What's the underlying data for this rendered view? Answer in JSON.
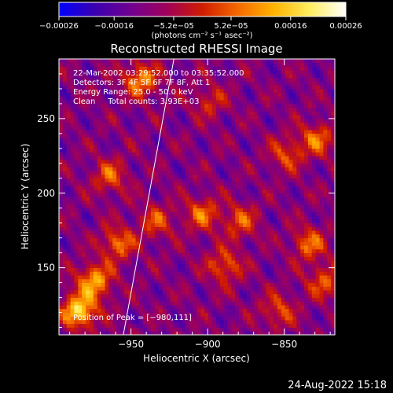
{
  "chart_data": {
    "type": "heatmap",
    "title": "Reconstructed RHESSI Image",
    "xlabel": "Heliocentric X (arcsec)",
    "ylabel": "Heliocentric Y (arcsec)",
    "xlim": [
      -997,
      -817
    ],
    "ylim": [
      105,
      290
    ],
    "x_ticks": [
      -950,
      -900,
      -850
    ],
    "x_tick_labels": [
      "−950",
      "−900",
      "−850"
    ],
    "y_ticks": [
      150,
      200,
      250
    ],
    "y_tick_labels": [
      "150",
      "200",
      "250"
    ],
    "colorbar": {
      "range": [
        -0.00026,
        0.00026
      ],
      "ticks": [
        -0.00026,
        -0.00016,
        -5.2e-05,
        5.2e-05,
        0.00016,
        0.00026
      ],
      "tick_labels": [
        "−0.00026",
        "−0.00016",
        "−5.2e−05",
        "5.2e−05",
        "0.00016",
        "0.00026"
      ],
      "units": "(photons cm⁻² s⁻¹ asec⁻²)",
      "colormap": [
        "#0000ff",
        "#3a00b0",
        "#700090",
        "#a0005a",
        "#d01c00",
        "#f56a00",
        "#ffb400",
        "#ffee60",
        "#ffffff"
      ]
    },
    "annotations": [
      "22-Mar-2002 03:29:52.000 to 03:35:52.000",
      "Detectors: 3F 4F 5F 6F 7F 8F, Att 1",
      "Energy Range: 25.0 - 50.0 keV",
      "Clean     Total counts: 3.93E+03"
    ],
    "peak_label": "Position of Peak = [−980,111]",
    "peak": [
      -980,
      111
    ],
    "limb_line": [
      [
        -955,
        105
      ],
      [
        -922,
        290
      ]
    ],
    "hotspots": [
      {
        "x": -985,
        "y": 120,
        "strength": 1.0
      },
      {
        "x": -975,
        "y": 140,
        "strength": 0.8
      },
      {
        "x": -960,
        "y": 165,
        "strength": 0.6
      },
      {
        "x": -945,
        "y": 275,
        "strength": 0.7
      },
      {
        "x": -965,
        "y": 210,
        "strength": 0.5
      },
      {
        "x": -905,
        "y": 185,
        "strength": 0.55
      },
      {
        "x": -890,
        "y": 150,
        "strength": 0.55
      },
      {
        "x": -880,
        "y": 180,
        "strength": 0.5
      },
      {
        "x": -835,
        "y": 165,
        "strength": 0.55
      },
      {
        "x": -830,
        "y": 235,
        "strength": 0.55
      },
      {
        "x": -850,
        "y": 225,
        "strength": 0.45
      },
      {
        "x": -825,
        "y": 140,
        "strength": 0.5
      },
      {
        "x": -855,
        "y": 120,
        "strength": 0.45
      },
      {
        "x": -935,
        "y": 180,
        "strength": 0.45
      },
      {
        "x": -900,
        "y": 260,
        "strength": 0.35
      }
    ]
  },
  "footer": {
    "timestamp": "24-Aug-2022 15:18"
  }
}
